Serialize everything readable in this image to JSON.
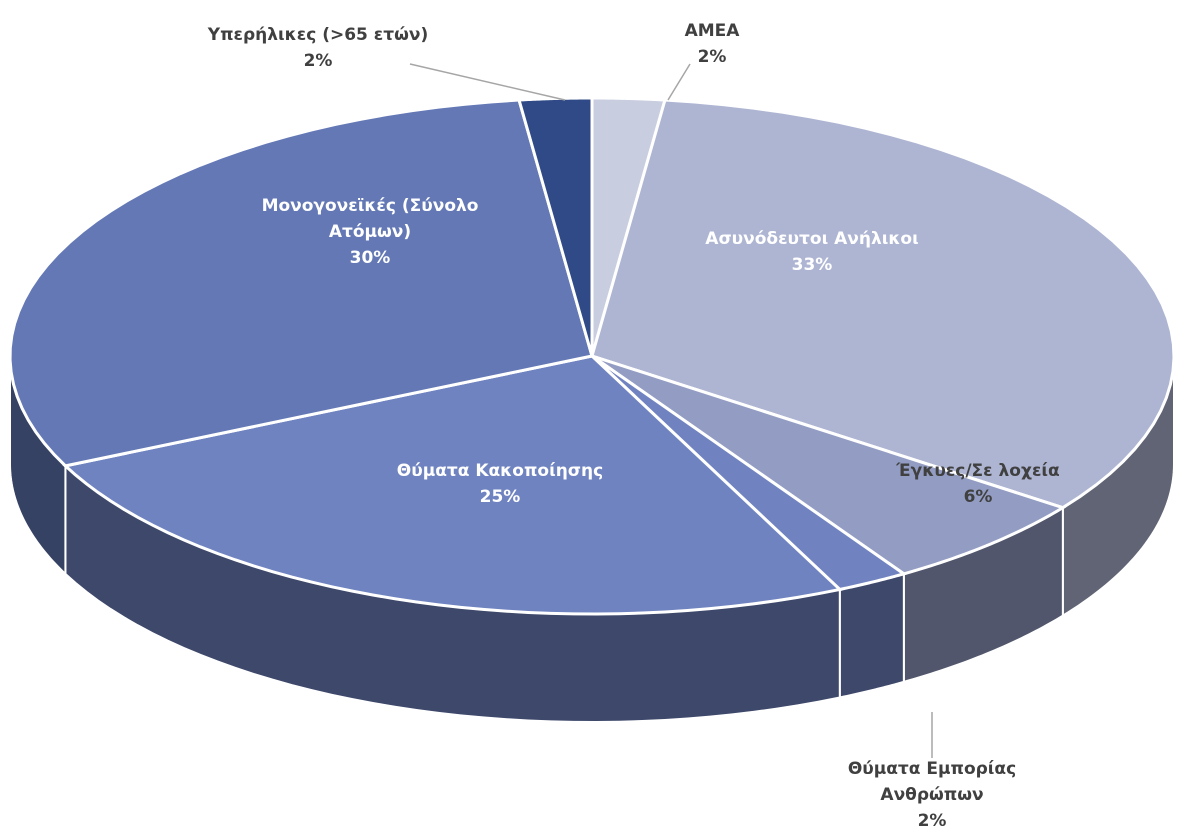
{
  "chart_data": {
    "type": "pie3d",
    "categories": [
      "ΑΜΕΑ",
      "Ασυνόδευτοι Ανήλικοι",
      "Έγκυες/Σε λοχεία",
      "Θύματα Εμπορίας Ανθρώπων",
      "Θύματα Κακοποίησης",
      "Μονογονεϊκές (Σύνολο Ατόμων)",
      "Υπερήλικες (>65 ετών)"
    ],
    "values": [
      2,
      33,
      6,
      2,
      25,
      30,
      2
    ],
    "value_labels": [
      "2%",
      "33%",
      "6%",
      "2%",
      "25%",
      "30%",
      "2%"
    ],
    "colors": [
      "#c9cde0",
      "#aeb5d3",
      "#939dc4",
      "#7083c0",
      "#6f83c0",
      "#6378b5",
      "#2f4a86"
    ]
  }
}
